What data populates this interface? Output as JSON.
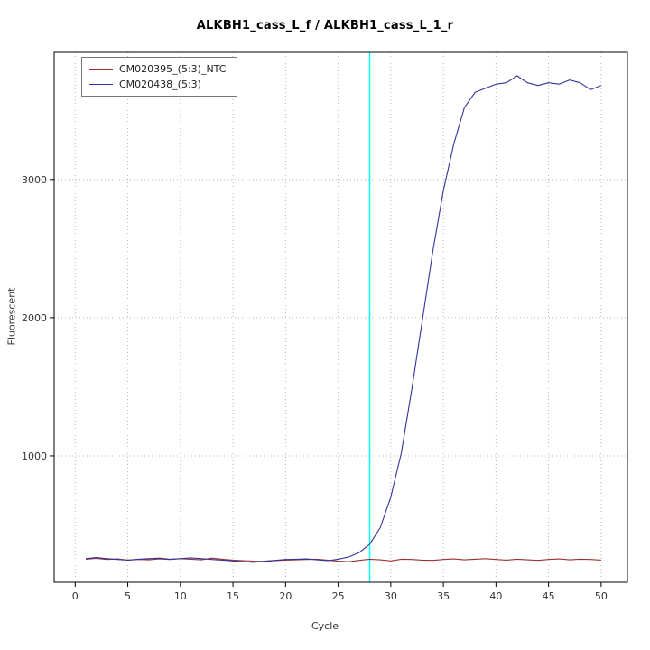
{
  "title": "ALKBH1_cass_L_f / ALKBH1_cass_L_1_r",
  "chart_data": {
    "type": "line",
    "title": "ALKBH1_cass_L_f / ALKBH1_cass_L_1_r",
    "xlabel": "Cycle",
    "ylabel": "Fluorescent",
    "xlim": [
      -2,
      52.5
    ],
    "ylim": [
      85,
      3920
    ],
    "x_ticks": [
      0,
      5,
      10,
      15,
      20,
      25,
      30,
      35,
      40,
      45,
      50
    ],
    "y_ticks": [
      1000,
      2000,
      3000
    ],
    "grid": true,
    "legend_position": "top-left",
    "threshold_line": {
      "x": 28,
      "color": "#00ffff"
    },
    "x": [
      1,
      2,
      3,
      4,
      5,
      6,
      7,
      8,
      9,
      10,
      11,
      12,
      13,
      14,
      15,
      16,
      17,
      18,
      19,
      20,
      21,
      22,
      23,
      24,
      25,
      26,
      27,
      28,
      29,
      30,
      31,
      32,
      33,
      34,
      35,
      36,
      37,
      38,
      39,
      40,
      41,
      42,
      43,
      44,
      45,
      46,
      47,
      48,
      49,
      50
    ],
    "series": [
      {
        "name": "CM020395_(5:3)_NTC",
        "color": "#993333",
        "values": [
          252,
          258,
          250,
          254,
          246,
          250,
          248,
          254,
          250,
          256,
          252,
          248,
          260,
          252,
          246,
          242,
          238,
          236,
          242,
          246,
          248,
          250,
          252,
          246,
          238,
          234,
          244,
          252,
          248,
          240,
          252,
          250,
          246,
          244,
          250,
          254,
          248,
          252,
          256,
          250,
          246,
          252,
          248,
          244,
          250,
          254,
          248,
          252,
          250,
          246
        ]
      },
      {
        "name": "CM020438_(5:3)",
        "color": "#333399",
        "values": [
          256,
          264,
          256,
          250,
          246,
          252,
          256,
          260,
          252,
          256,
          262,
          256,
          250,
          246,
          240,
          234,
          230,
          238,
          244,
          250,
          252,
          254,
          248,
          242,
          252,
          268,
          300,
          360,
          480,
          700,
          1020,
          1480,
          1980,
          2480,
          2920,
          3260,
          3520,
          3630,
          3660,
          3690,
          3700,
          3750,
          3700,
          3680,
          3700,
          3690,
          3720,
          3700,
          3650,
          3680
        ]
      }
    ]
  }
}
